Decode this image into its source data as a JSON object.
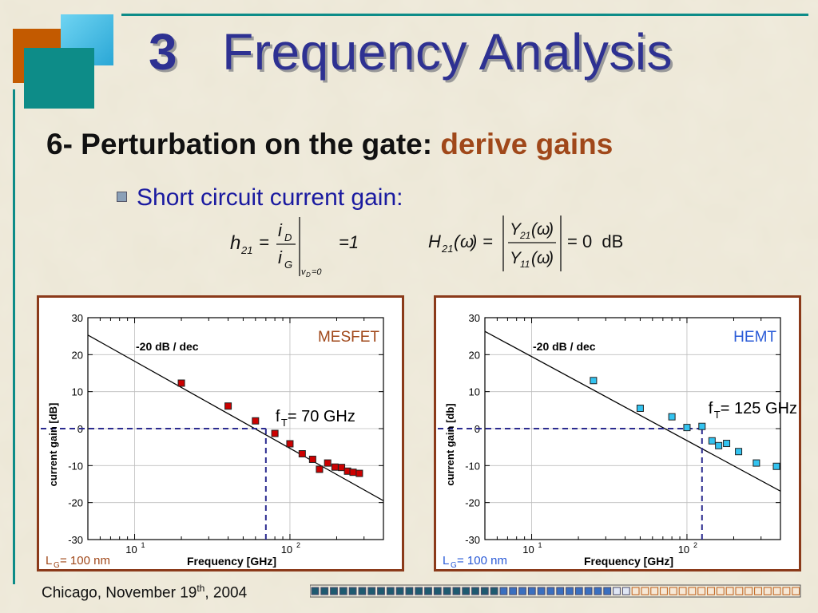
{
  "slide": {
    "title_number": "3",
    "title_text": "Frequency Analysis",
    "subtitle_prefix": "6- Perturbation on the gate: ",
    "subtitle_accent": "derive gains",
    "bullet": "Short circuit current gain:",
    "footer_city": "Chicago, November 19",
    "footer_sup": "th",
    "footer_year": ", 2004"
  },
  "equations": {
    "h21_rhs": "=1",
    "H21_rhs": "= 0  dB"
  },
  "colors": {
    "title": "#2e3192",
    "accent": "#a0481a",
    "panel_border": "#8b3a1a",
    "mesfet_marker": "#cc0000",
    "hemt_marker": "#33c3f0",
    "guide_line": "#2b2b8f"
  },
  "chart_data": [
    {
      "type": "scatter",
      "device": "MESFET",
      "device_color": "#a0481a",
      "marker_color": "#cc0000",
      "xlabel": "Frequency [GHz]",
      "ylabel": "current gain   [dB]",
      "x_scale": "log",
      "xlim": [
        5,
        400
      ],
      "ylim": [
        -30,
        30
      ],
      "y_ticks": [
        30,
        20,
        10,
        0,
        -10,
        -20,
        -30
      ],
      "x_tick_labels": [
        {
          "base": "10",
          "exp": "1",
          "value": 10
        },
        {
          "base": "10",
          "exp": "2",
          "value": 100
        }
      ],
      "grid": true,
      "slope_label": "-20 dB / dec",
      "ft_label_pre": "f",
      "ft_label_sub": "T",
      "ft_label_post": " = 70 GHz",
      "ft": 70,
      "fit_line": [
        [
          5,
          25.3
        ],
        [
          400,
          -19.5
        ]
      ],
      "lg_pre": "L",
      "lg_sub": "G",
      "lg_post": " = 100 nm",
      "points": [
        {
          "x": 20,
          "y": 12.3
        },
        {
          "x": 40,
          "y": 6.1
        },
        {
          "x": 60,
          "y": 2.1
        },
        {
          "x": 80,
          "y": -1.3
        },
        {
          "x": 100,
          "y": -4.1
        },
        {
          "x": 120,
          "y": -6.8
        },
        {
          "x": 140,
          "y": -8.3
        },
        {
          "x": 155,
          "y": -11.0
        },
        {
          "x": 175,
          "y": -9.3
        },
        {
          "x": 195,
          "y": -10.4
        },
        {
          "x": 215,
          "y": -10.5
        },
        {
          "x": 235,
          "y": -11.5
        },
        {
          "x": 255,
          "y": -11.8
        },
        {
          "x": 280,
          "y": -12.1
        }
      ]
    },
    {
      "type": "scatter",
      "device": "HEMT",
      "device_color": "#2a5bd7",
      "marker_color": "#33c3f0",
      "xlabel": "Frequency [GHz]",
      "ylabel": "current gain   [db]",
      "x_scale": "log",
      "xlim": [
        5,
        400
      ],
      "ylim": [
        -30,
        30
      ],
      "y_ticks": [
        30,
        20,
        10,
        0,
        -10,
        -20,
        -30
      ],
      "x_tick_labels": [
        {
          "base": "10",
          "exp": "1",
          "value": 10
        },
        {
          "base": "10",
          "exp": "2",
          "value": 100
        }
      ],
      "grid": true,
      "slope_label": "-20 dB / dec",
      "ft_label_pre": "f",
      "ft_label_sub": "T",
      "ft_label_post": " = 125 GHz",
      "ft": 125,
      "fit_line": [
        [
          5,
          26.3
        ],
        [
          400,
          -16.9
        ]
      ],
      "lg_pre": "L",
      "lg_sub": "G",
      "lg_post": " = 100 nm",
      "points": [
        {
          "x": 25,
          "y": 13.0
        },
        {
          "x": 50,
          "y": 5.5
        },
        {
          "x": 80,
          "y": 3.2
        },
        {
          "x": 100,
          "y": 0.3
        },
        {
          "x": 125,
          "y": 0.6
        },
        {
          "x": 145,
          "y": -3.3
        },
        {
          "x": 160,
          "y": -4.6
        },
        {
          "x": 180,
          "y": -4.0
        },
        {
          "x": 215,
          "y": -6.2
        },
        {
          "x": 280,
          "y": -9.3
        },
        {
          "x": 440,
          "y": -10.2
        }
      ]
    }
  ]
}
